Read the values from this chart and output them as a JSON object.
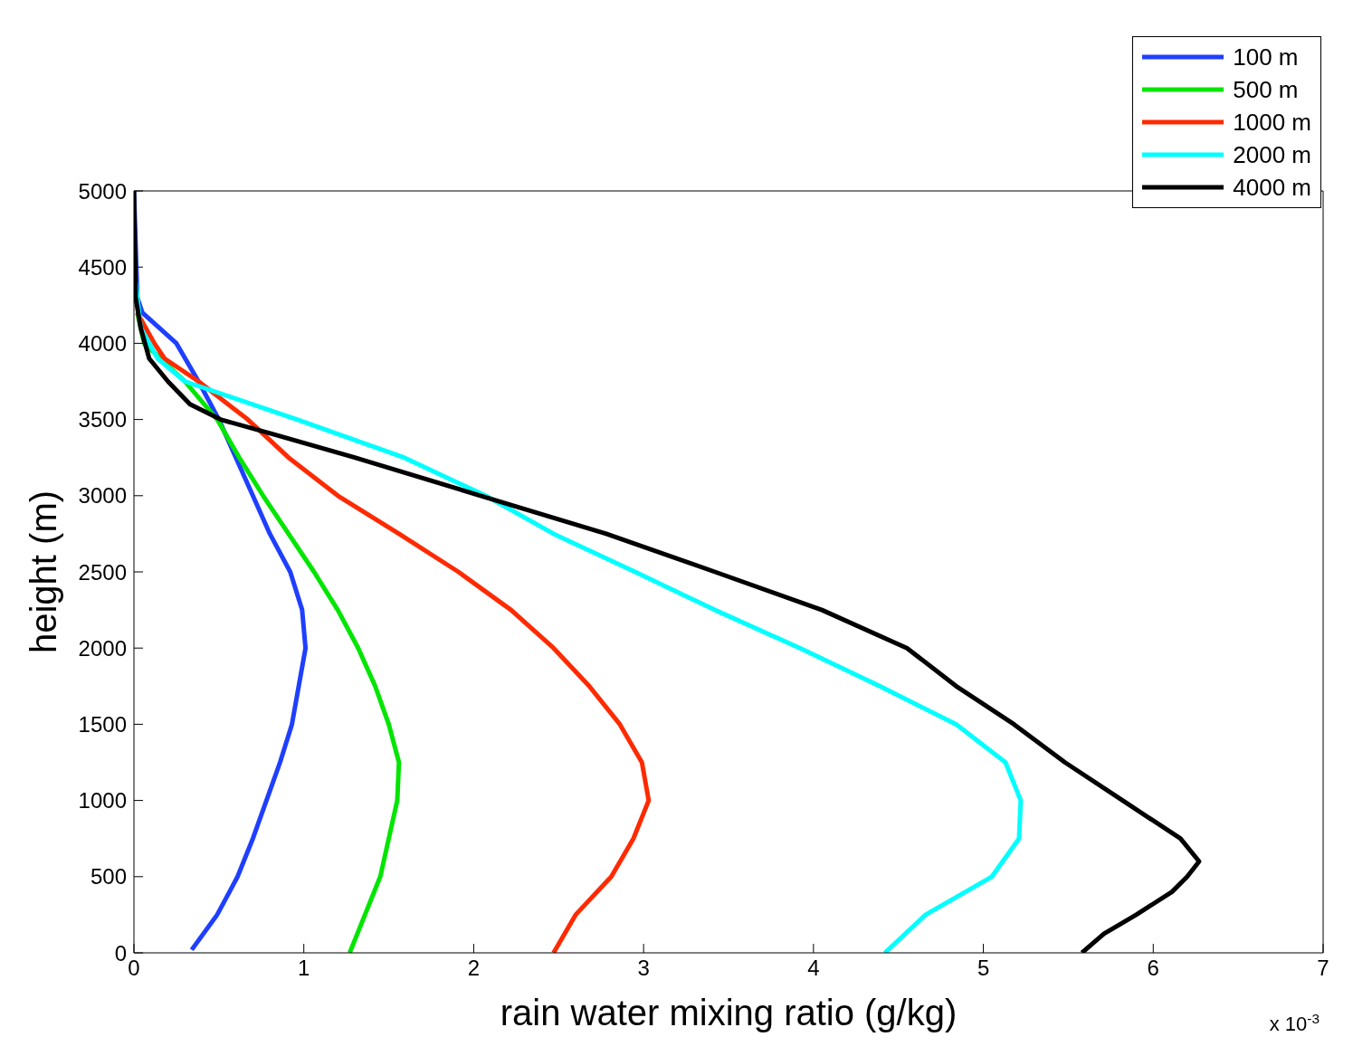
{
  "chart_data": {
    "type": "line",
    "xlabel": "rain water mixing ratio (g/kg)",
    "ylabel": "height (m)",
    "annotations": [
      "x 10$^{-3}$"
    ],
    "xlim": [
      0,
      7
    ],
    "xticks": [
      0,
      1,
      2,
      3,
      4,
      5,
      6,
      7
    ],
    "ylim": [
      0,
      5000
    ],
    "yticks": [
      0,
      500,
      1000,
      1500,
      2000,
      2500,
      3000,
      3500,
      4000,
      4500,
      5000
    ],
    "grid": false,
    "legend": "top right",
    "marker": "none",
    "line_style": "solid",
    "series": [
      {
        "name": "100 m",
        "color": "#1f3fff",
        "x": [
          0.34,
          0.49,
          0.61,
          0.7,
          0.78,
          0.86,
          0.93,
          0.97,
          1.01,
          0.99,
          0.92,
          0.8,
          0.7,
          0.6,
          0.5,
          0.38,
          0.25,
          0.05,
          0.02,
          0
        ],
        "values": [
          20,
          250,
          500,
          750,
          1000,
          1250,
          1500,
          1750,
          2000,
          2250,
          2500,
          2750,
          3000,
          3250,
          3500,
          3750,
          4000,
          4200,
          4300,
          5000
        ]
      },
      {
        "name": "500 m",
        "color": "#00e600",
        "x": [
          1.27,
          1.36,
          1.45,
          1.5,
          1.55,
          1.56,
          1.5,
          1.42,
          1.32,
          1.2,
          1.06,
          0.91,
          0.76,
          0.62,
          0.49,
          0.3,
          0.06,
          0.02
        ],
        "values": [
          0,
          250,
          500,
          750,
          1000,
          1250,
          1500,
          1750,
          2000,
          2250,
          2500,
          2750,
          3000,
          3250,
          3500,
          3750,
          4000,
          4200
        ]
      },
      {
        "name": "1000 m",
        "color": "#ff2a00",
        "x": [
          2.47,
          2.6,
          2.81,
          2.94,
          3.03,
          2.99,
          2.86,
          2.68,
          2.47,
          2.22,
          1.91,
          1.56,
          1.2,
          0.91,
          0.67,
          0.38,
          0.18,
          0.12,
          0.02
        ],
        "values": [
          0,
          250,
          500,
          750,
          1000,
          1250,
          1500,
          1750,
          2000,
          2250,
          2500,
          2750,
          3000,
          3250,
          3500,
          3750,
          3900,
          4000,
          4200
        ]
      },
      {
        "name": "2000 m",
        "color": "#00ffff",
        "x": [
          4.42,
          4.66,
          5.05,
          5.21,
          5.22,
          5.13,
          4.84,
          4.39,
          3.92,
          3.42,
          2.95,
          2.47,
          2.07,
          1.59,
          0.96,
          0.3,
          0.14,
          0.04,
          0.01
        ],
        "values": [
          0,
          250,
          500,
          750,
          1000,
          1250,
          1500,
          1750,
          2000,
          2250,
          2500,
          2750,
          3000,
          3250,
          3500,
          3750,
          3900,
          4100,
          4400
        ]
      },
      {
        "name": "4000 m",
        "color": "#000000",
        "x": [
          5.58,
          5.71,
          5.9,
          6.11,
          6.2,
          6.27,
          6.16,
          5.82,
          5.48,
          5.18,
          4.84,
          4.55,
          4.05,
          3.42,
          2.78,
          2.04,
          1.3,
          0.83,
          0.51,
          0.33,
          0.2,
          0.09,
          0.04,
          0.01,
          0
        ],
        "values": [
          0,
          125,
          250,
          400,
          500,
          600,
          750,
          1000,
          1250,
          1500,
          1750,
          2000,
          2250,
          2500,
          2750,
          3000,
          3250,
          3400,
          3500,
          3600,
          3750,
          3900,
          4100,
          4300,
          5000
        ]
      }
    ]
  }
}
